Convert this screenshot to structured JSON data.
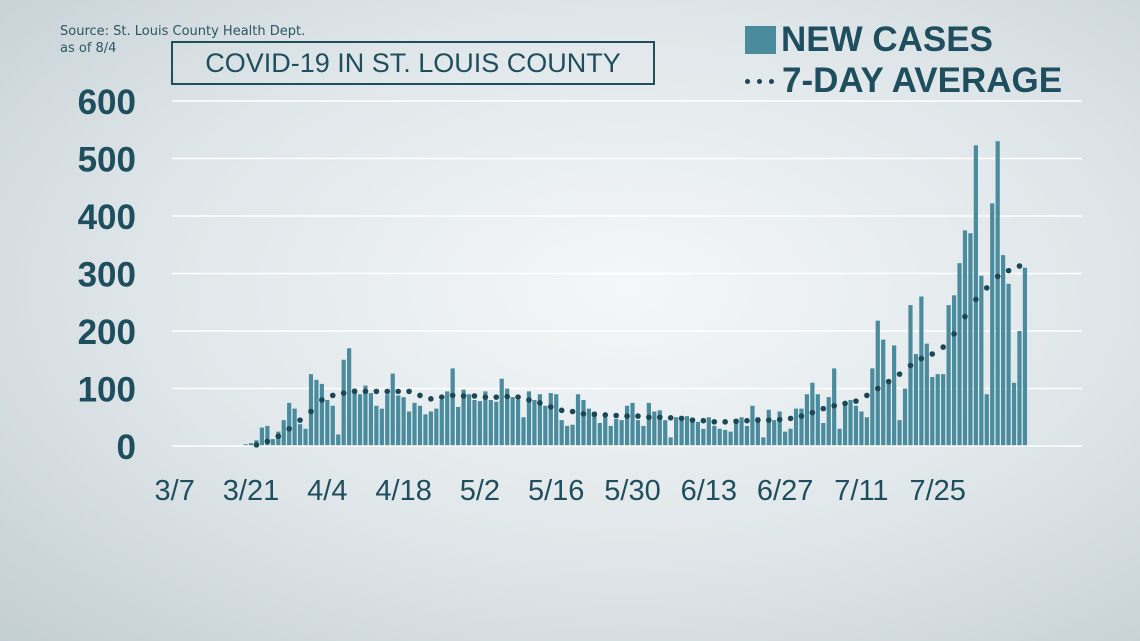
{
  "header": {
    "source_line1": "Source: St. Louis County Health Dept.",
    "source_line2": "as of 8/4",
    "title": "COVID-19 IN ST. LOUIS COUNTY"
  },
  "legend": {
    "cases_label": "NEW CASES",
    "avg_label": "7-DAY AVERAGE"
  },
  "colors": {
    "bar": "#4a8c9e",
    "dots": "#1c4754",
    "text": "#1f4f5e",
    "grid": "#ffffff"
  },
  "chart_data": {
    "type": "bar",
    "start_date": "3/7",
    "ylim": [
      0,
      600
    ],
    "y_ticks": [
      0,
      100,
      200,
      300,
      400,
      500,
      600
    ],
    "x_tick_labels": [
      "3/7",
      "3/21",
      "4/4",
      "4/18",
      "5/2",
      "5/16",
      "5/30",
      "6/13",
      "6/27",
      "7/11",
      "7/25"
    ],
    "grid": true,
    "legend_position": "top-right",
    "series": [
      {
        "name": "NEW CASES",
        "type": "bar",
        "values": [
          0,
          0,
          0,
          0,
          0,
          0,
          0,
          0,
          0,
          0,
          0,
          0,
          0,
          3,
          5,
          10,
          32,
          35,
          12,
          25,
          45,
          75,
          65,
          38,
          30,
          125,
          115,
          108,
          80,
          70,
          20,
          150,
          170,
          100,
          90,
          105,
          92,
          70,
          65,
          90,
          126,
          88,
          85,
          60,
          75,
          70,
          55,
          60,
          65,
          80,
          95,
          135,
          68,
          98,
          90,
          80,
          78,
          95,
          80,
          77,
          117,
          100,
          85,
          80,
          50,
          95,
          80,
          90,
          70,
          92,
          90,
          45,
          35,
          37,
          90,
          80,
          65,
          60,
          40,
          50,
          35,
          47,
          45,
          70,
          75,
          45,
          35,
          75,
          60,
          62,
          45,
          15,
          50,
          47,
          52,
          45,
          42,
          30,
          50,
          35,
          30,
          28,
          25,
          40,
          50,
          35,
          70,
          50,
          15,
          63,
          45,
          60,
          25,
          30,
          65,
          65,
          90,
          110,
          90,
          40,
          85,
          135,
          30,
          75,
          80,
          70,
          60,
          50,
          135,
          218,
          185,
          110,
          175,
          45,
          100,
          245,
          160,
          260,
          178,
          120,
          125,
          125,
          245,
          262,
          318,
          375,
          370,
          523,
          296,
          90,
          422,
          530,
          332,
          282,
          110,
          200,
          310
        ],
        "color": "#4a8c9e"
      },
      {
        "name": "7-DAY AVERAGE",
        "type": "scatter",
        "values": [
          0,
          0,
          0,
          0,
          0,
          0,
          0,
          0,
          0,
          0,
          0,
          0,
          0,
          0,
          0,
          2,
          5,
          8,
          12,
          17,
          25,
          30,
          35,
          45,
          50,
          60,
          70,
          80,
          85,
          88,
          90,
          92,
          95,
          95,
          95,
          95,
          95,
          95,
          95,
          95,
          95,
          95,
          95,
          95,
          95,
          88,
          85,
          82,
          85,
          85,
          85,
          88,
          87,
          87,
          87,
          87,
          85,
          85,
          85,
          85,
          85,
          86,
          86,
          85,
          82,
          80,
          78,
          75,
          70,
          68,
          65,
          62,
          60,
          60,
          58,
          56,
          55,
          55,
          54,
          54,
          53,
          53,
          52,
          52,
          52,
          52,
          51,
          50,
          50,
          50,
          49,
          49,
          48,
          48,
          47,
          45,
          44,
          44,
          43,
          42,
          41,
          42,
          42,
          43,
          44,
          44,
          45,
          45,
          45,
          45,
          46,
          46,
          47,
          48,
          50,
          52,
          55,
          58,
          62,
          65,
          68,
          70,
          72,
          74,
          75,
          78,
          82,
          88,
          95,
          100,
          105,
          112,
          118,
          125,
          132,
          140,
          148,
          152,
          155,
          160,
          165,
          172,
          180,
          195,
          210,
          225,
          240,
          255,
          265,
          275,
          285,
          295,
          300,
          305,
          310,
          313,
          316
        ]
      }
    ]
  }
}
